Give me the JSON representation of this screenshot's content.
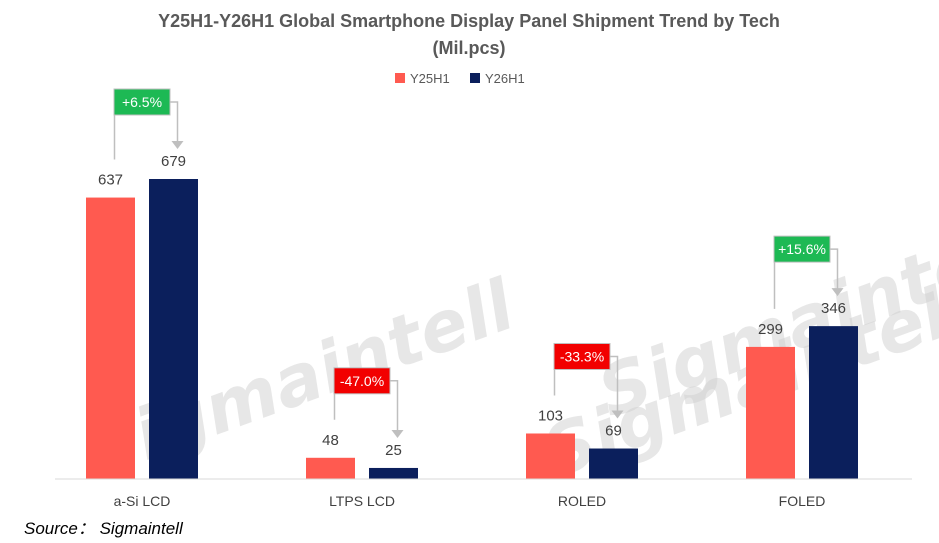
{
  "chart_data": {
    "type": "bar",
    "title_line1": "Y25H1-Y26H1 Global Smartphone Display Panel Shipment Trend by Tech",
    "title_line2": "(Mil.pcs)",
    "categories": [
      "a-Si LCD",
      "LTPS LCD",
      "ROLED",
      "FOLED"
    ],
    "series": [
      {
        "name": "Y25H1",
        "color": "#FF5A50",
        "values": [
          637,
          48,
          103,
          299
        ]
      },
      {
        "name": "Y26H1",
        "color": "#0B1F5C",
        "values": [
          679,
          25,
          69,
          346
        ]
      }
    ],
    "changes": [
      {
        "label": "+6.5%",
        "color": "#1DB954"
      },
      {
        "label": "-47.0%",
        "color": "#F20000"
      },
      {
        "label": "-33.3%",
        "color": "#F20000"
      },
      {
        "label": "+15.6%",
        "color": "#1DB954"
      }
    ],
    "ylim": [
      0,
      700
    ],
    "legend_position": "top-center",
    "watermark": "Sigmaintell",
    "source": "Source： Sigmaintell"
  }
}
